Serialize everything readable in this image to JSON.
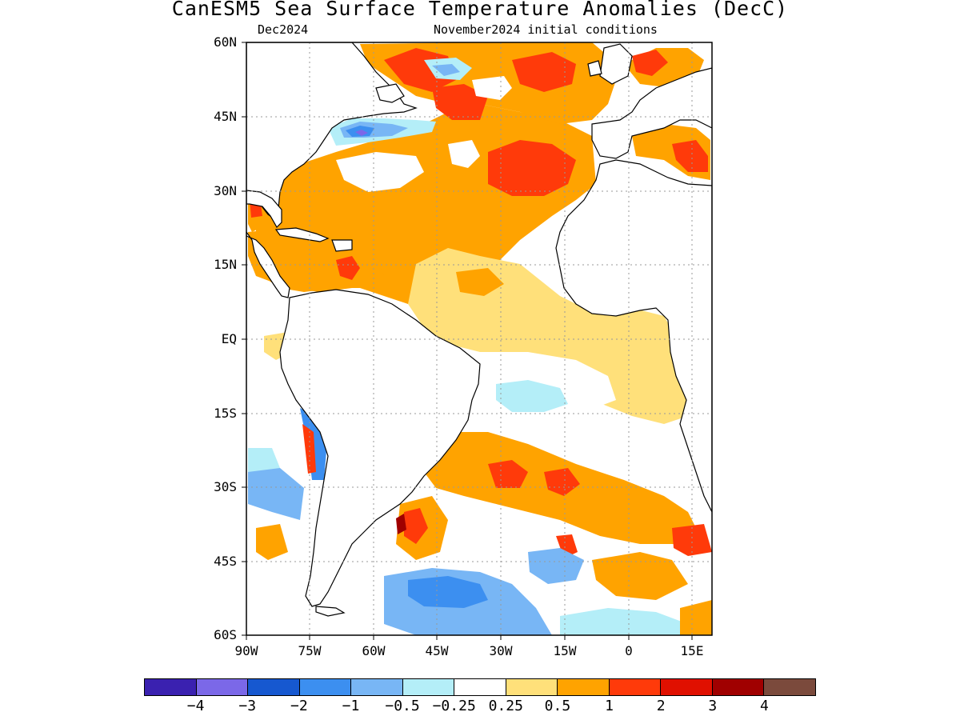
{
  "title": "CanESM5 Sea Surface Temperature Anomalies (DecC)",
  "subtitle_left": "Dec2024",
  "subtitle_right": "November2024 initial conditions",
  "map": {
    "projection": "lat-lon",
    "lat_range": [
      -60,
      60
    ],
    "lon_range": [
      -90,
      20
    ],
    "grid_lines": "dotted",
    "lat_labels": [
      "60N",
      "45N",
      "30N",
      "15N",
      "EQ",
      "15S",
      "30S",
      "45S",
      "60S"
    ],
    "lon_labels": [
      "90W",
      "75W",
      "60W",
      "45W",
      "30W",
      "15W",
      "0",
      "15E"
    ]
  },
  "colorbar": {
    "colors": [
      "#3a21b0",
      "#7b68e8",
      "#1658d0",
      "#3c8ff0",
      "#78b6f5",
      "#b4eef8",
      "#ffffff",
      "#ffe07a",
      "#ffa300",
      "#ff3a0a",
      "#e01000",
      "#a00000",
      "#7b4a3c"
    ],
    "labels": [
      "-4",
      "-3",
      "-2",
      "-1",
      "-0.5",
      "-0.25",
      "0.25",
      "0.5",
      "1",
      "2",
      "3",
      "4"
    ]
  }
}
